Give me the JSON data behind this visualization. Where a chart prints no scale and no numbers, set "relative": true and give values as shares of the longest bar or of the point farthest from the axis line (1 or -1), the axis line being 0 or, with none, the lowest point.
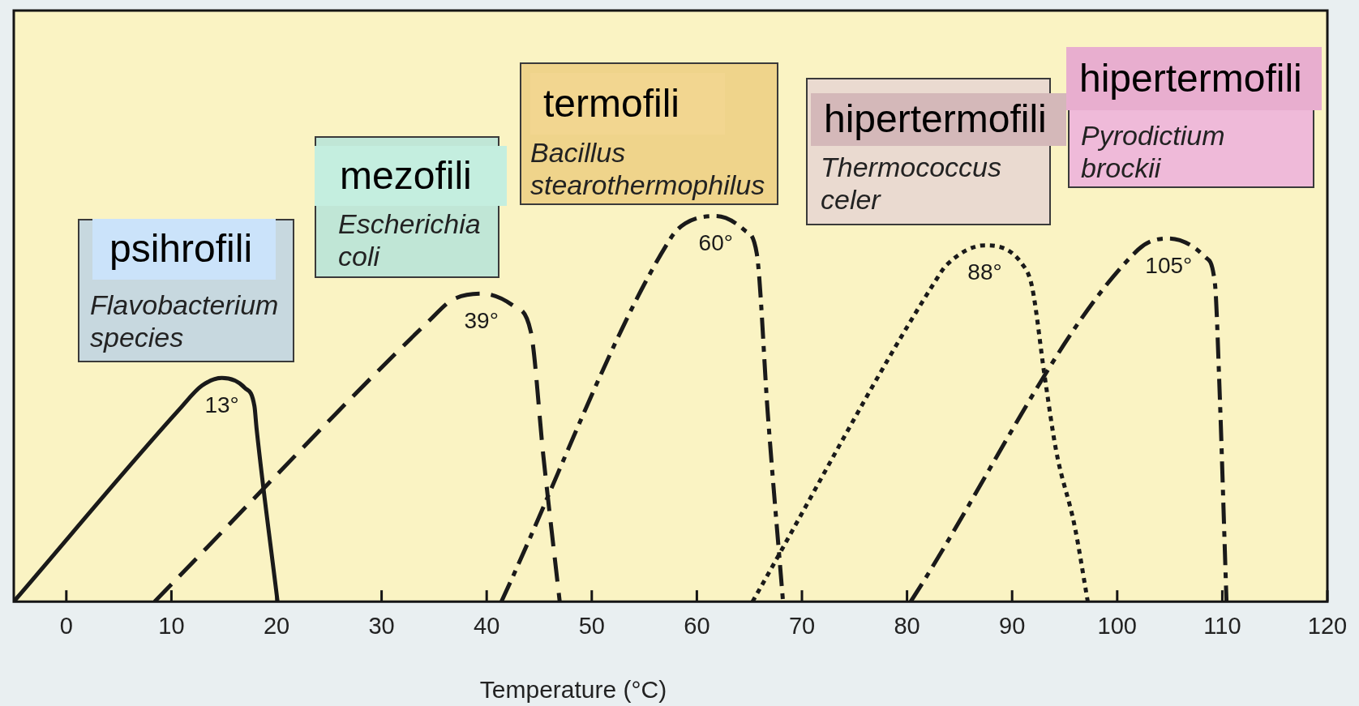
{
  "chart_data": {
    "type": "line",
    "relative": true,
    "xlabel": "Temperature (°C)",
    "xlim": [
      -5,
      120
    ],
    "xticks": [
      0,
      10,
      20,
      30,
      40,
      50,
      60,
      70,
      80,
      90,
      100,
      110,
      120
    ],
    "grid": false,
    "legend": false,
    "marker": "none",
    "series": [
      {
        "color": "#1a1a1a",
        "line_style": "solid",
        "x": [
          -5,
          10.8,
          12.9,
          14.8,
          17.0,
          17.9,
          18.1,
          20.1
        ],
        "values": [
          0,
          0.5,
          0.56,
          0.58,
          0.554,
          0.507,
          0.45,
          0
        ]
      },
      {
        "color": "#1a1a1a",
        "line_style": "dashed",
        "x": [
          8.4,
          34.7,
          36.7,
          39.5,
          42.6,
          44.2,
          45.4,
          46.95
        ],
        "values": [
          0,
          0.733,
          0.782,
          0.799,
          0.766,
          0.7,
          0.376,
          0
        ]
      },
      {
        "color": "#1a1a1a",
        "line_style": "dashdot",
        "x": [
          41.4,
          57.5,
          58.9,
          61.8,
          64.6,
          65.7,
          66.75,
          68.2
        ],
        "values": [
          0,
          0.942,
          0.981,
          1,
          0.962,
          0.903,
          0.488,
          0
        ]
      },
      {
        "color": "#1a1a1a",
        "line_style": "dotted",
        "x": [
          65.3,
          82.8,
          83.8,
          87.4,
          91.0,
          91.9,
          93.1,
          94.2,
          95.95,
          97.2
        ],
        "values": [
          0,
          0.836,
          0.874,
          0.924,
          0.874,
          0.816,
          0.584,
          0.39,
          0.196,
          0
        ]
      },
      {
        "color": "#1a1a1a",
        "line_style": "dashdot",
        "x": [
          80.35,
          102.0,
          104.9,
          108.4,
          109.3,
          109.7,
          110.4
        ],
        "values": [
          0,
          0.913,
          0.942,
          0.893,
          0.825,
          0.58,
          0
        ]
      }
    ],
    "annotations": [
      "psihrofili",
      "Flavobacterium species",
      "mezofili",
      "Escherichia coli",
      "termofili",
      "Bacillus stearothermophilus",
      "hipertermofili",
      "Thermococcus celer",
      "hipertermofili",
      "Pyrodictium brockii",
      {
        "text": "13°",
        "x": 14.8,
        "y": 0.58
      },
      {
        "text": "39°",
        "x": 39.5,
        "y": 0.799
      },
      {
        "text": "60°",
        "x": 61.8,
        "y": 1
      },
      {
        "text": "88°",
        "x": 87.4,
        "y": 0.924
      },
      {
        "text": "105°",
        "x": 104.9,
        "y": 0.942
      }
    ]
  }
}
